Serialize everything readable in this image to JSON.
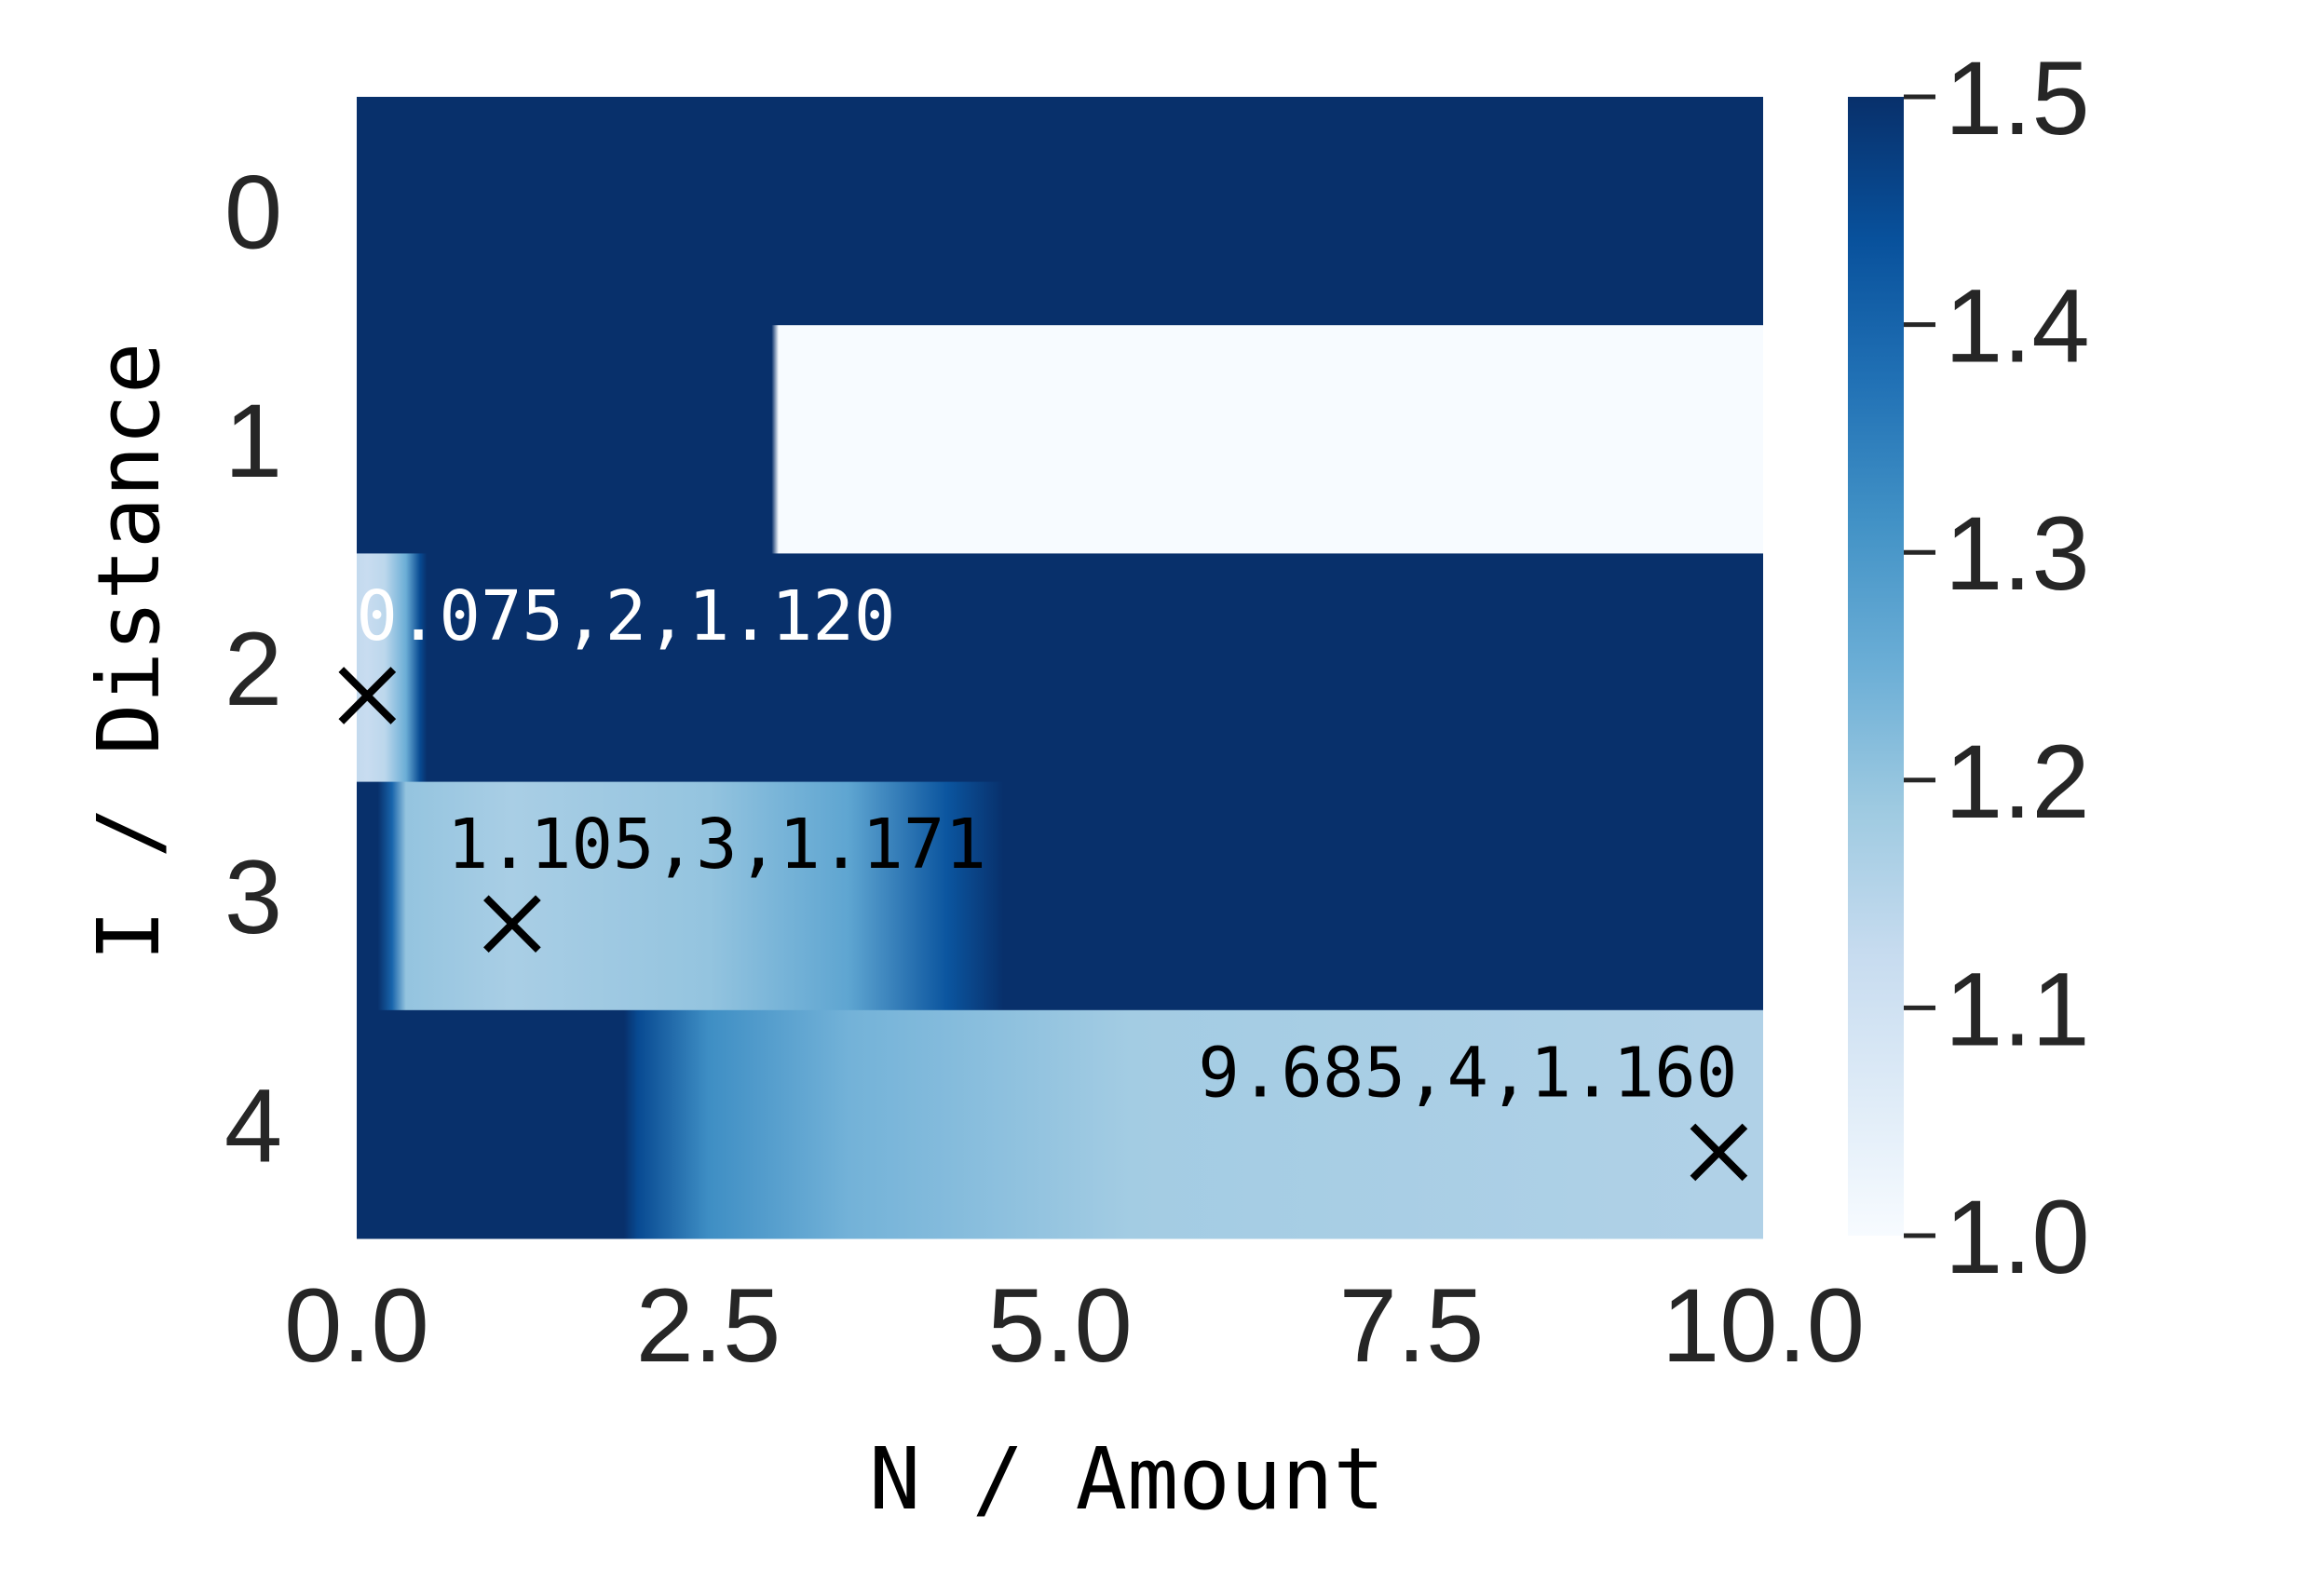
{
  "chart_data": {
    "type": "heatmap",
    "title": "",
    "xlabel": "N / Amount",
    "ylabel": "I / Distance",
    "xlim": [
      0,
      10
    ],
    "x_ticks": [
      "0.0",
      "2.5",
      "5.0",
      "7.5",
      "10.0"
    ],
    "x_tick_values": [
      0,
      2.5,
      5,
      7.5,
      10
    ],
    "y_ticks": [
      "0",
      "1",
      "2",
      "3",
      "4"
    ],
    "colorbar": {
      "cmap": "Blues",
      "vmin": 1.0,
      "vmax": 1.5,
      "ticks": [
        "1.0",
        "1.1",
        "1.2",
        "1.3",
        "1.4",
        "1.5"
      ],
      "tick_values": [
        1.0,
        1.1,
        1.2,
        1.3,
        1.4,
        1.5
      ]
    },
    "rows": [
      {
        "row": 0,
        "profile": [
          [
            0,
            1.5
          ],
          [
            10,
            1.5
          ]
        ]
      },
      {
        "row": 1,
        "profile": [
          [
            0,
            1.5
          ],
          [
            2.95,
            1.5
          ],
          [
            3.0,
            1.0
          ],
          [
            10,
            1.0
          ]
        ]
      },
      {
        "row": 2,
        "profile": [
          [
            0,
            1.13
          ],
          [
            0.075,
            1.12
          ],
          [
            0.2,
            1.14
          ],
          [
            0.35,
            1.25
          ],
          [
            0.45,
            1.45
          ],
          [
            0.5,
            1.5
          ],
          [
            10,
            1.5
          ]
        ]
      },
      {
        "row": 3,
        "profile": [
          [
            0,
            1.5
          ],
          [
            0.15,
            1.5
          ],
          [
            0.25,
            1.4
          ],
          [
            0.35,
            1.2
          ],
          [
            1.105,
            1.171
          ],
          [
            2.5,
            1.2
          ],
          [
            3.5,
            1.27
          ],
          [
            4.2,
            1.43
          ],
          [
            4.6,
            1.5
          ],
          [
            10,
            1.5
          ]
        ]
      },
      {
        "row": 4,
        "profile": [
          [
            0,
            1.5
          ],
          [
            1.9,
            1.5
          ],
          [
            2.0,
            1.45
          ],
          [
            2.5,
            1.32
          ],
          [
            3.5,
            1.24
          ],
          [
            5.5,
            1.18
          ],
          [
            9.685,
            1.16
          ],
          [
            10,
            1.16
          ]
        ]
      }
    ],
    "annotations": [
      {
        "text": "0.075,2,1.120",
        "x": 0.075,
        "row": 2,
        "value": 1.12
      },
      {
        "text": "1.105,3,1.171",
        "x": 1.105,
        "row": 3,
        "value": 1.171
      },
      {
        "text": "9.685,4,1.160",
        "x": 9.685,
        "row": 4,
        "value": 1.16
      }
    ],
    "marker": "x",
    "grid": false,
    "legend": "none"
  }
}
